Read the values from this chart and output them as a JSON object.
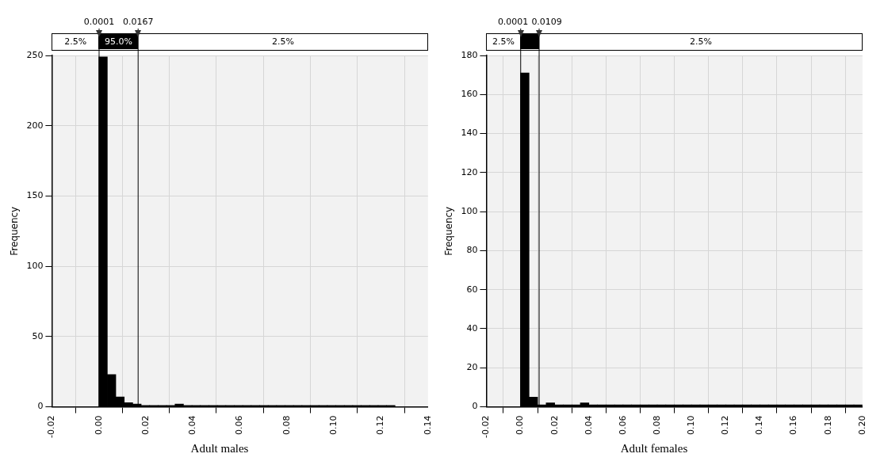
{
  "chart_data": [
    {
      "type": "histogram",
      "title": "Adult males",
      "ylabel": "Frequency",
      "color": "#000000",
      "grid": true,
      "bins": [
        0,
        0.0036,
        0.0072,
        0.0108,
        0.0144,
        0.018,
        0.0216,
        0.0252,
        0.0288,
        0.0324,
        0.036,
        0.0396,
        0.0432,
        0.0468,
        0.0504,
        0.054,
        0.0576,
        0.0612,
        0.0648,
        0.0684,
        0.072,
        0.0756,
        0.0792,
        0.0828,
        0.0864,
        0.09,
        0.0936,
        0.0972,
        0.1008,
        0.1044,
        0.108,
        0.1116,
        0.1152,
        0.1188,
        0.1224,
        0.126
      ],
      "values": [
        249,
        23,
        7,
        3,
        2,
        1,
        1,
        1,
        1,
        2,
        1,
        1,
        1,
        1,
        1,
        1,
        1,
        1,
        1,
        1,
        1,
        1,
        1,
        1,
        1,
        1,
        1,
        1,
        1,
        1,
        1,
        1,
        1,
        1,
        1
      ],
      "xlim": [
        -0.02,
        0.14
      ],
      "xticks": [
        {
          "value": -0.02,
          "label": "-0.02"
        },
        {
          "value": 0,
          "label": "0.00"
        },
        {
          "value": 0.02,
          "label": "0.02"
        },
        {
          "value": 0.04,
          "label": "0.04"
        },
        {
          "value": 0.06,
          "label": "0.06"
        },
        {
          "value": 0.08,
          "label": "0.08"
        },
        {
          "value": 0.1,
          "label": "0.10"
        },
        {
          "value": 0.12,
          "label": "0.12"
        },
        {
          "value": 0.14,
          "label": "0.14"
        }
      ],
      "ylim": [
        0,
        250
      ],
      "yticks": [
        0,
        50,
        100,
        150,
        200,
        250
      ],
      "ref_lines": [
        {
          "axis": "x",
          "value": 0.0001,
          "label": "0.0001",
          "color": "#000000"
        },
        {
          "axis": "x",
          "value": 0.0167,
          "label": "0.0167",
          "color": "#000000"
        }
      ],
      "annotations": [
        "2.5%",
        "95.0%",
        "2.5%"
      ]
    },
    {
      "type": "histogram",
      "title": "Adult females",
      "ylabel": "Frequency",
      "color": "#000000",
      "grid": true,
      "bins": [
        0,
        0.005,
        0.01,
        0.015,
        0.02,
        0.025,
        0.03,
        0.035,
        0.04,
        0.045,
        0.05,
        0.055,
        0.06,
        0.065,
        0.07,
        0.075,
        0.08,
        0.085,
        0.09,
        0.095,
        0.1,
        0.105,
        0.11,
        0.115,
        0.12,
        0.125,
        0.13,
        0.135,
        0.14,
        0.145,
        0.15,
        0.155,
        0.16,
        0.165,
        0.17,
        0.175,
        0.18,
        0.185,
        0.19,
        0.195,
        0.2
      ],
      "values": [
        171,
        5,
        1,
        2,
        1,
        1,
        1,
        2,
        1,
        1,
        1,
        1,
        1,
        1,
        1,
        1,
        1,
        1,
        1,
        1,
        1,
        1,
        1,
        1,
        1,
        1,
        1,
        1,
        1,
        1,
        1,
        1,
        1,
        1,
        1,
        1,
        1,
        1,
        1,
        1
      ],
      "xlim": [
        -0.02,
        0.2
      ],
      "xticks": [
        {
          "value": -0.02,
          "label": "-0.02"
        },
        {
          "value": 0,
          "label": "0.00"
        },
        {
          "value": 0.02,
          "label": "0.02"
        },
        {
          "value": 0.04,
          "label": "0.04"
        },
        {
          "value": 0.06,
          "label": "0.06"
        },
        {
          "value": 0.08,
          "label": "0.08"
        },
        {
          "value": 0.1,
          "label": "0.10"
        },
        {
          "value": 0.12,
          "label": "0.12"
        },
        {
          "value": 0.14,
          "label": "0.14"
        },
        {
          "value": 0.16,
          "label": "0.16"
        },
        {
          "value": 0.18,
          "label": "0.18"
        },
        {
          "value": 0.2,
          "label": "0.20"
        }
      ],
      "ylim": [
        0,
        180
      ],
      "yticks": [
        0,
        20,
        40,
        60,
        80,
        100,
        120,
        140,
        160,
        180
      ],
      "ref_lines": [
        {
          "axis": "x",
          "value": 0.0001,
          "label": "0.0001",
          "color": "#000000"
        },
        {
          "axis": "x",
          "value": 0.0109,
          "label": "0.0109",
          "color": "#000000"
        }
      ],
      "annotations": [
        "2.5%",
        "2.5%"
      ]
    }
  ]
}
